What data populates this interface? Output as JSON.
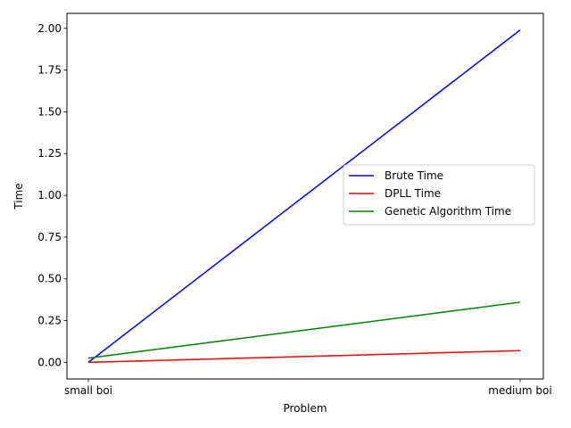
{
  "chart_data": {
    "type": "line",
    "categories": [
      "small boi",
      "medium boi"
    ],
    "series": [
      {
        "name": "Brute Time",
        "values": [
          0.0,
          1.99
        ],
        "color": "#0000ff"
      },
      {
        "name": "DPLL Time",
        "values": [
          0.0,
          0.07
        ],
        "color": "#ff0000"
      },
      {
        "name": "Genetic Algorithm Time",
        "values": [
          0.025,
          0.36
        ],
        "color": "#008000"
      }
    ],
    "xlabel": "Problem",
    "ylabel": "Time",
    "ylim": [
      -0.0995,
      2.0895
    ],
    "yticks": [
      0.0,
      0.25,
      0.5,
      0.75,
      1.0,
      1.25,
      1.5,
      1.75,
      2.0
    ],
    "ytick_labels": [
      "0.00",
      "0.25",
      "0.50",
      "0.75",
      "1.00",
      "1.25",
      "1.50",
      "1.75",
      "2.00"
    ],
    "grid": false,
    "legend_position": "center-right"
  }
}
